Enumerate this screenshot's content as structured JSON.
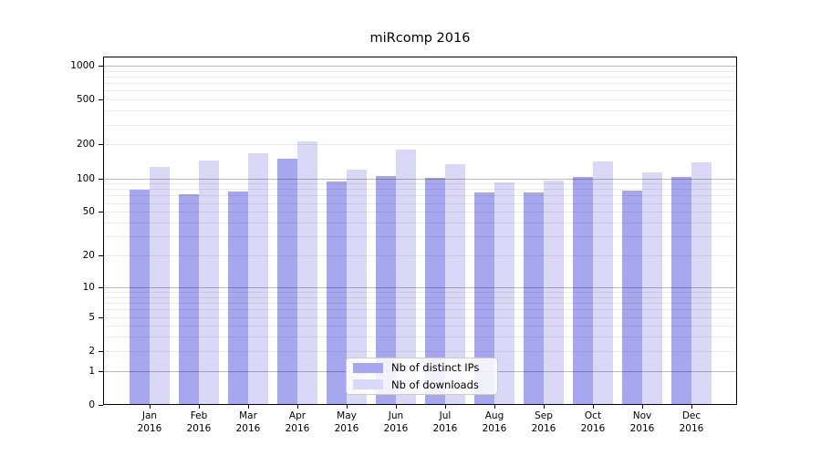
{
  "title": "miRcomp 2016",
  "chart_data": {
    "type": "bar",
    "title": "miRcomp 2016",
    "categories": [
      "Jan 2016",
      "Feb 2016",
      "Mar 2016",
      "Apr 2016",
      "May 2016",
      "Jun 2016",
      "Jul 2016",
      "Aug 2016",
      "Sep 2016",
      "Oct 2016",
      "Nov 2016",
      "Dec 2016"
    ],
    "months": [
      "Jan",
      "Feb",
      "Mar",
      "Apr",
      "May",
      "Jun",
      "Jul",
      "Aug",
      "Sep",
      "Oct",
      "Nov",
      "Dec"
    ],
    "year_label": "2016",
    "series": [
      {
        "name": "Nb of distinct IPs",
        "color": "#a7a7ef",
        "values": [
          79,
          72,
          76,
          149,
          93,
          104,
          101,
          75,
          75,
          103,
          77,
          102
        ]
      },
      {
        "name": "Nb of downloads",
        "color": "#d9d9f7",
        "values": [
          126,
          145,
          167,
          214,
          120,
          180,
          134,
          92,
          96,
          142,
          114,
          140
        ]
      }
    ],
    "xlabel": "",
    "ylabel": "",
    "yscale": "log1p",
    "ylim": [
      0,
      1200
    ],
    "y_ticks": [
      0,
      1,
      2,
      5,
      10,
      20,
      50,
      100,
      200,
      500,
      1000
    ],
    "y_tick_labels": [
      "0",
      "1",
      "2",
      "5",
      "10",
      "20",
      "50",
      "100",
      "200",
      "500",
      "1000"
    ],
    "y_major_gridlines": [
      1,
      10,
      100,
      1000
    ],
    "grid": true,
    "legend_position": "lower center"
  },
  "colors": {
    "distinct_ips_bar": "#a7a7ef",
    "downloads_bar": "#d9d9f7",
    "major_grid": "#bababa",
    "minor_grid": "#ebebeb",
    "axis": "#000000",
    "legend_border": "#cccccc",
    "background": "#ffffff"
  }
}
